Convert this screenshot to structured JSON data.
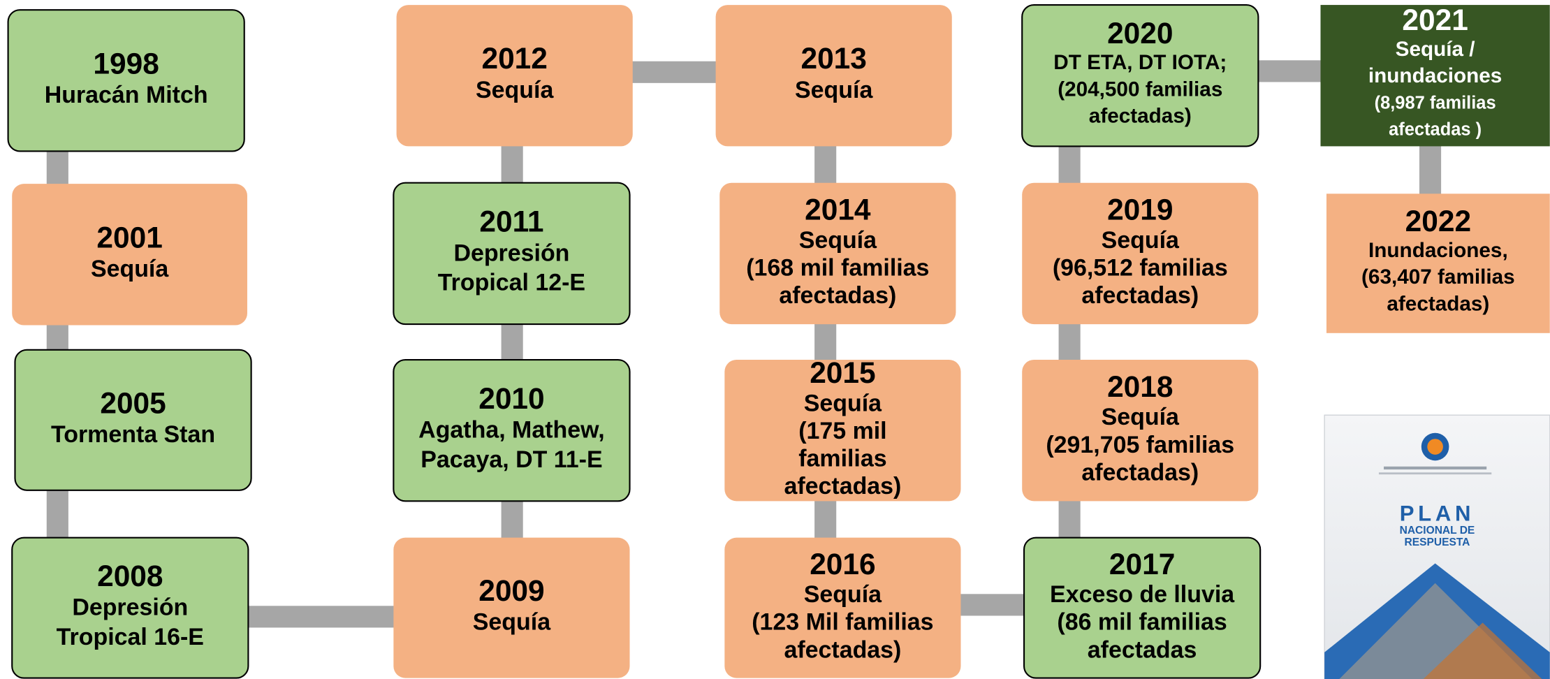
{
  "nodes": [
    {
      "year": "1998",
      "lines": [
        "Huracán Mitch"
      ]
    },
    {
      "year": "2001",
      "lines": [
        "Sequía"
      ]
    },
    {
      "year": "2005",
      "lines": [
        "Tormenta Stan"
      ]
    },
    {
      "year": "2008",
      "lines": [
        "Depresión",
        "Tropical 16-E"
      ]
    },
    {
      "year": "2009",
      "lines": [
        "Sequía"
      ]
    },
    {
      "year": "2010",
      "lines": [
        "Agatha, Mathew,",
        "Pacaya, DT 11-E"
      ]
    },
    {
      "year": "2011",
      "lines": [
        "Depresión",
        "Tropical 12-E"
      ]
    },
    {
      "year": "2012",
      "lines": [
        "Sequía"
      ]
    },
    {
      "year": "2013",
      "lines": [
        "Sequía"
      ]
    },
    {
      "year": "2014",
      "lines": [
        "Sequía",
        "(168 mil familias",
        "afectadas)"
      ]
    },
    {
      "year": "2015",
      "lines": [
        "Sequía",
        "(175 mil",
        "familias",
        "afectadas)"
      ]
    },
    {
      "year": "2016",
      "lines": [
        "Sequía",
        "(123 Mil familias",
        "afectadas)"
      ]
    },
    {
      "year": "2017",
      "lines": [
        "Exceso de lluvia",
        "(86 mil familias",
        "afectadas"
      ]
    },
    {
      "year": "2018",
      "lines": [
        "Sequía",
        "(291,705 familias",
        "afectadas)"
      ]
    },
    {
      "year": "2019",
      "lines": [
        "Sequía",
        "(96,512 familias",
        "afectadas)"
      ]
    },
    {
      "year": "2020",
      "lines": [
        "DT ETA, DT IOTA;",
        "(204,500 familias",
        "afectadas)"
      ]
    },
    {
      "year": "2021",
      "lines": [
        "Sequía /",
        "inundaciones",
        "(8,987 familias",
        "afectadas )"
      ]
    },
    {
      "year": "2022",
      "lines": [
        "Inundaciones,",
        "(63,407 familias",
        "afectadas)"
      ]
    }
  ],
  "document": {
    "lines": [
      "PLAN",
      "NACIONAL DE",
      "RESPUESTA"
    ]
  }
}
